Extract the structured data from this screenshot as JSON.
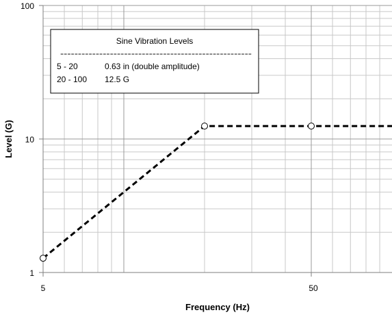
{
  "chart_data": {
    "type": "line",
    "title": "",
    "xlabel": "Frequency (Hz)",
    "ylabel": "Level (G)",
    "x_scale": "log",
    "y_scale": "log",
    "xlim": [
      5,
      100
    ],
    "ylim": [
      1,
      100
    ],
    "grid": true,
    "x_tick_labels": [
      "5",
      "50"
    ],
    "y_tick_labels": [
      "1",
      "10",
      "100"
    ],
    "series": [
      {
        "name": "",
        "color": "#000000",
        "line_style": "dashed",
        "x": [
          5,
          20,
          50,
          100
        ],
        "y": [
          1.28,
          12.5,
          12.5,
          12.5
        ],
        "marker_x": [
          5,
          20,
          50
        ],
        "marker_y": [
          1.28,
          12.5,
          12.5
        ]
      }
    ],
    "legend": {
      "placement": "top-left",
      "title": "Sine Vibration Levels",
      "separator": "------------------------------------------------------",
      "rows": [
        {
          "range": "5 - 20",
          "level": "0.63 in (double amplitude)"
        },
        {
          "range": "20 - 100",
          "level": "12.5 G"
        }
      ]
    }
  }
}
